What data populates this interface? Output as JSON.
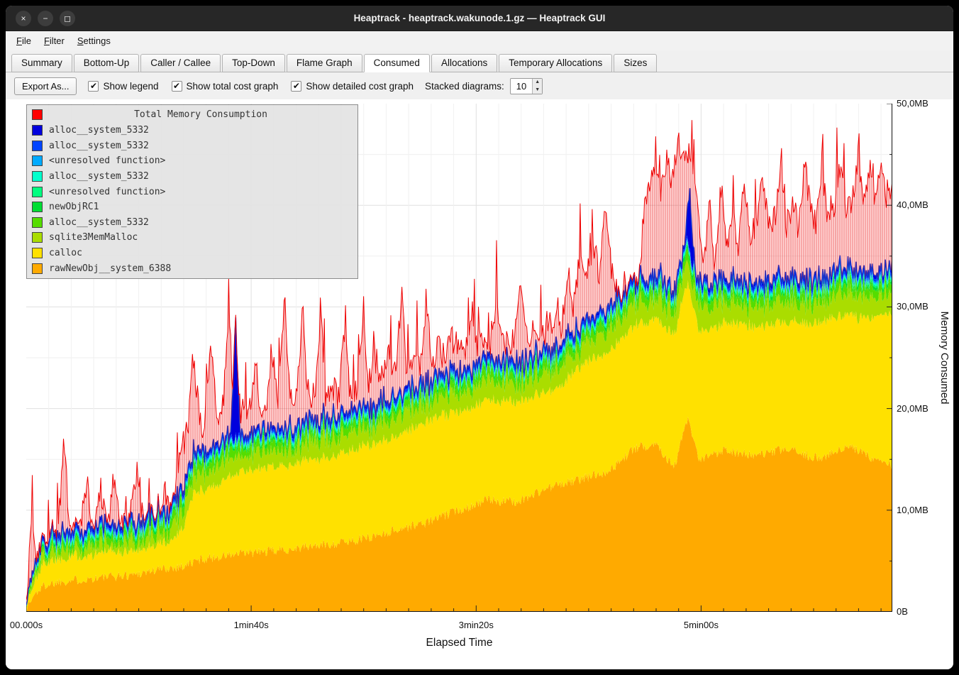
{
  "window": {
    "title": "Heaptrack - heaptrack.wakunode.1.gz — Heaptrack GUI",
    "buttons": [
      {
        "name": "close",
        "glyph": "×"
      },
      {
        "name": "minimize",
        "glyph": "−"
      },
      {
        "name": "maximize",
        "glyph": "◻"
      }
    ]
  },
  "menu": {
    "items": [
      {
        "label": "File"
      },
      {
        "label": "Filter"
      },
      {
        "label": "Settings"
      }
    ]
  },
  "tabs": {
    "items": [
      "Summary",
      "Bottom-Up",
      "Caller / Callee",
      "Top-Down",
      "Flame Graph",
      "Consumed",
      "Allocations",
      "Temporary Allocations",
      "Sizes"
    ],
    "selected": "Consumed"
  },
  "toolbar": {
    "export_label": "Export As...",
    "checkboxes": [
      {
        "label": "Show legend",
        "checked": true
      },
      {
        "label": "Show total cost graph",
        "checked": true
      },
      {
        "label": "Show detailed cost graph",
        "checked": true
      }
    ],
    "stacked_label": "Stacked diagrams:",
    "stacked_value": "10",
    "spin_up": "▲",
    "spin_down": "▼"
  },
  "legend": {
    "title_item": {
      "label": "Total Memory Consumption",
      "color": "#ff0000"
    },
    "items": [
      {
        "label": "alloc__system_5332",
        "color": "#0000dd"
      },
      {
        "label": "alloc__system_5332",
        "color": "#0044ff"
      },
      {
        "label": "<unresolved function>",
        "color": "#00aaff"
      },
      {
        "label": "alloc__system_5332",
        "color": "#00ffcc"
      },
      {
        "label": "<unresolved function>",
        "color": "#00ff80"
      },
      {
        "label": "newObjRC1",
        "color": "#00dd33"
      },
      {
        "label": "alloc__system_5332",
        "color": "#55dd00"
      },
      {
        "label": "sqlite3MemMalloc",
        "color": "#aadd00"
      },
      {
        "label": "calloc",
        "color": "#ffe100"
      },
      {
        "label": "rawNewObj__system_6388",
        "color": "#ffaa00"
      }
    ]
  },
  "chart_data": {
    "type": "area",
    "title": "Total Memory Consumption",
    "xlabel": "Elapsed Time",
    "ylabel": "Memory Consumed",
    "duration_s": 385,
    "ylim_mb": [
      0,
      50
    ],
    "grid": {
      "v_step_s": 10,
      "h_step_mb": 5
    },
    "x_ticks": [
      {
        "s": 0,
        "label": "00.000s"
      },
      {
        "s": 100,
        "label": "1min40s"
      },
      {
        "s": 200,
        "label": "3min20s"
      },
      {
        "s": 300,
        "label": "5min00s"
      }
    ],
    "y_ticks": [
      {
        "mb": 0,
        "label": "0B"
      },
      {
        "mb": 10,
        "label": "10,0MB"
      },
      {
        "mb": 20,
        "label": "20,0MB"
      },
      {
        "mb": 30,
        "label": "30,0MB"
      },
      {
        "mb": 40,
        "label": "40,0MB"
      },
      {
        "mb": 50,
        "label": "50,0MB"
      }
    ],
    "layers": [
      {
        "name": "rawNewObj__system_6388",
        "color": "#ffaa00",
        "noise": 0.5,
        "keypoints": [
          [
            0,
            0.3
          ],
          [
            4,
            1.8
          ],
          [
            8,
            2.6
          ],
          [
            15,
            3.0
          ],
          [
            30,
            3.3
          ],
          [
            45,
            3.6
          ],
          [
            60,
            4.2
          ],
          [
            70,
            4.5
          ],
          [
            78,
            5.2
          ],
          [
            95,
            5.7
          ],
          [
            110,
            6.0
          ],
          [
            125,
            6.4
          ],
          [
            140,
            6.8
          ],
          [
            152,
            7.3
          ],
          [
            165,
            8.1
          ],
          [
            178,
            8.8
          ],
          [
            192,
            10.0
          ],
          [
            205,
            11.0
          ],
          [
            218,
            10.8
          ],
          [
            232,
            12.2
          ],
          [
            246,
            13.0
          ],
          [
            260,
            14.0
          ],
          [
            270,
            16.0
          ],
          [
            280,
            16.6
          ],
          [
            288,
            14.2
          ],
          [
            294,
            19.0
          ],
          [
            299,
            14.8
          ],
          [
            310,
            16.0
          ],
          [
            324,
            15.3
          ],
          [
            338,
            16.0
          ],
          [
            352,
            15.1
          ],
          [
            366,
            16.2
          ],
          [
            378,
            15.0
          ],
          [
            385,
            14.4
          ]
        ]
      },
      {
        "name": "calloc",
        "color": "#ffe100",
        "noise": 0.25,
        "keypoints": [
          [
            0,
            0.3
          ],
          [
            8,
            2.2
          ],
          [
            20,
            2.4
          ],
          [
            50,
            2.4
          ],
          [
            64,
            2.6
          ],
          [
            70,
            4.0
          ],
          [
            74,
            6.6
          ],
          [
            82,
            7.0
          ],
          [
            95,
            8.0
          ],
          [
            110,
            8.3
          ],
          [
            130,
            8.5
          ],
          [
            148,
            9.0
          ],
          [
            163,
            9.2
          ],
          [
            180,
            10.0
          ],
          [
            198,
            9.7
          ],
          [
            216,
            9.9
          ],
          [
            236,
            9.5
          ],
          [
            248,
            11.4
          ],
          [
            264,
            12.0
          ],
          [
            278,
            12.3
          ],
          [
            292,
            13.4
          ],
          [
            303,
            12.4
          ],
          [
            318,
            12.8
          ],
          [
            336,
            12.4
          ],
          [
            354,
            13.4
          ],
          [
            370,
            13.0
          ],
          [
            385,
            15.0
          ]
        ]
      },
      {
        "name": "sqlite3MemMalloc",
        "color": "#aadd00",
        "noise": 0.9,
        "keypoints": [
          [
            0,
            0.1
          ],
          [
            8,
            0.9
          ],
          [
            60,
            0.9
          ],
          [
            70,
            1.8
          ],
          [
            100,
            1.6
          ],
          [
            150,
            1.8
          ],
          [
            200,
            1.7
          ],
          [
            250,
            1.9
          ],
          [
            300,
            2.2
          ],
          [
            350,
            2.0
          ],
          [
            385,
            2.2
          ]
        ]
      },
      {
        "name": "alloc__system_5332",
        "color": "#55dd00",
        "noise": 0.3,
        "keypoints": [
          [
            0,
            0.05
          ],
          [
            8,
            0.5
          ],
          [
            68,
            0.9
          ],
          [
            150,
            0.8
          ],
          [
            250,
            0.9
          ],
          [
            385,
            1.0
          ]
        ]
      },
      {
        "name": "newObjRC1",
        "color": "#00dd33",
        "noise": 0.12,
        "keypoints": [
          [
            0,
            0.05
          ],
          [
            10,
            0.3
          ],
          [
            385,
            0.35
          ]
        ]
      },
      {
        "name": "unresolved_function_2",
        "color": "#00ff80",
        "noise": 0.05,
        "keypoints": [
          [
            0,
            0.03
          ],
          [
            10,
            0.15
          ],
          [
            385,
            0.18
          ]
        ]
      },
      {
        "name": "alloc__system_5332",
        "color": "#00ffcc",
        "noise": 0.05,
        "keypoints": [
          [
            0,
            0.03
          ],
          [
            10,
            0.15
          ],
          [
            385,
            0.18
          ]
        ]
      },
      {
        "name": "unresolved_function_1",
        "color": "#00aaff",
        "noise": 0.03,
        "keypoints": [
          [
            0,
            0.03
          ],
          [
            10,
            0.15
          ],
          [
            385,
            0.15
          ]
        ]
      },
      {
        "name": "alloc__system_5332",
        "color": "#0044ff",
        "noise": 0.05,
        "keypoints": [
          [
            0,
            0.05
          ],
          [
            10,
            0.25
          ],
          [
            385,
            0.3
          ]
        ]
      },
      {
        "name": "alloc__system_5332",
        "color": "#0000dd",
        "noise": 0.05,
        "keypoints": [
          [
            0,
            0.05
          ],
          [
            10,
            0.3
          ],
          [
            91,
            0.3
          ],
          [
            93,
            12.0
          ],
          [
            95,
            0.3
          ],
          [
            293,
            0.3
          ],
          [
            295,
            6.0
          ],
          [
            297,
            0.35
          ],
          [
            385,
            0.35
          ]
        ]
      }
    ],
    "total": {
      "name": "Total Memory Consumption",
      "stroke": "#ee0000",
      "fill": "rgba(255,60,60,0.20)",
      "hatch": "rgba(225,0,0,0.45)",
      "noise": 1.4,
      "spike_chance": 0.08,
      "spike_amp": 6,
      "keypoints": [
        [
          0,
          1
        ],
        [
          2,
          7.5
        ],
        [
          5,
          5.5
        ],
        [
          8,
          6.5
        ],
        [
          11,
          5.5
        ],
        [
          14,
          8
        ],
        [
          17,
          17
        ],
        [
          19,
          8
        ],
        [
          23,
          7
        ],
        [
          27,
          13
        ],
        [
          30,
          7.5
        ],
        [
          33,
          12
        ],
        [
          36,
          8
        ],
        [
          39,
          13.5
        ],
        [
          42,
          8
        ],
        [
          45,
          9
        ],
        [
          49,
          14
        ],
        [
          52,
          8.5
        ],
        [
          56,
          9
        ],
        [
          59,
          8
        ],
        [
          62,
          12
        ],
        [
          65,
          9
        ],
        [
          69,
          16
        ],
        [
          72,
          18
        ],
        [
          74,
          26
        ],
        [
          77,
          19
        ],
        [
          79,
          18
        ],
        [
          82,
          27
        ],
        [
          85,
          18
        ],
        [
          87,
          19
        ],
        [
          90,
          29
        ],
        [
          92,
          20
        ],
        [
          94,
          19
        ],
        [
          97,
          20
        ],
        [
          99,
          19
        ],
        [
          102,
          25
        ],
        [
          104,
          20
        ],
        [
          107,
          20
        ],
        [
          109,
          26
        ],
        [
          112,
          20
        ],
        [
          115,
          31
        ],
        [
          117,
          21
        ],
        [
          120,
          21
        ],
        [
          123,
          30
        ],
        [
          125,
          22
        ],
        [
          128,
          21
        ],
        [
          131,
          30
        ],
        [
          133,
          21
        ],
        [
          136,
          22
        ],
        [
          139,
          21
        ],
        [
          142,
          29
        ],
        [
          144,
          21
        ],
        [
          147,
          22
        ],
        [
          150,
          30
        ],
        [
          152,
          22
        ],
        [
          155,
          25
        ],
        [
          158,
          23
        ],
        [
          161,
          25
        ],
        [
          164,
          24
        ],
        [
          167,
          31
        ],
        [
          169,
          24
        ],
        [
          172,
          25
        ],
        [
          175,
          24
        ],
        [
          178,
          30
        ],
        [
          180,
          25
        ],
        [
          183,
          26
        ],
        [
          186,
          25
        ],
        [
          189,
          27
        ],
        [
          192,
          26
        ],
        [
          195,
          25
        ],
        [
          198,
          30
        ],
        [
          200,
          26
        ],
        [
          203,
          27
        ],
        [
          206,
          26
        ],
        [
          209,
          31
        ],
        [
          212,
          27
        ],
        [
          214,
          26
        ],
        [
          217,
          27
        ],
        [
          220,
          32
        ],
        [
          223,
          27
        ],
        [
          226,
          28
        ],
        [
          229,
          27
        ],
        [
          232,
          28
        ],
        [
          235,
          29
        ],
        [
          238,
          28
        ],
        [
          241,
          33
        ],
        [
          243,
          30
        ],
        [
          246,
          35
        ],
        [
          249,
          33
        ],
        [
          252,
          36
        ],
        [
          255,
          33
        ],
        [
          257,
          40
        ],
        [
          260,
          34
        ],
        [
          263,
          31
        ],
        [
          266,
          30
        ],
        [
          269,
          31
        ],
        [
          272,
          32
        ],
        [
          275,
          40
        ],
        [
          277,
          42
        ],
        [
          280,
          44
        ],
        [
          282,
          41
        ],
        [
          285,
          45
        ],
        [
          287,
          42
        ],
        [
          290,
          46
        ],
        [
          292,
          44
        ],
        [
          295,
          46
        ],
        [
          297,
          42
        ],
        [
          299,
          38
        ],
        [
          301,
          34
        ],
        [
          304,
          40
        ],
        [
          306,
          34
        ],
        [
          309,
          42
        ],
        [
          311,
          36
        ],
        [
          314,
          38
        ],
        [
          317,
          36
        ],
        [
          319,
          43
        ],
        [
          322,
          37
        ],
        [
          325,
          38
        ],
        [
          327,
          44
        ],
        [
          330,
          38
        ],
        [
          333,
          39
        ],
        [
          335,
          44
        ],
        [
          338,
          38
        ],
        [
          341,
          40
        ],
        [
          343,
          38
        ],
        [
          346,
          44
        ],
        [
          349,
          39
        ],
        [
          351,
          38
        ],
        [
          354,
          43
        ],
        [
          356,
          39
        ],
        [
          359,
          40
        ],
        [
          362,
          44
        ],
        [
          364,
          39
        ],
        [
          367,
          40
        ],
        [
          370,
          45
        ],
        [
          372,
          40
        ],
        [
          375,
          44
        ],
        [
          377,
          40
        ],
        [
          380,
          45
        ],
        [
          382,
          41
        ],
        [
          385,
          42
        ]
      ]
    }
  }
}
